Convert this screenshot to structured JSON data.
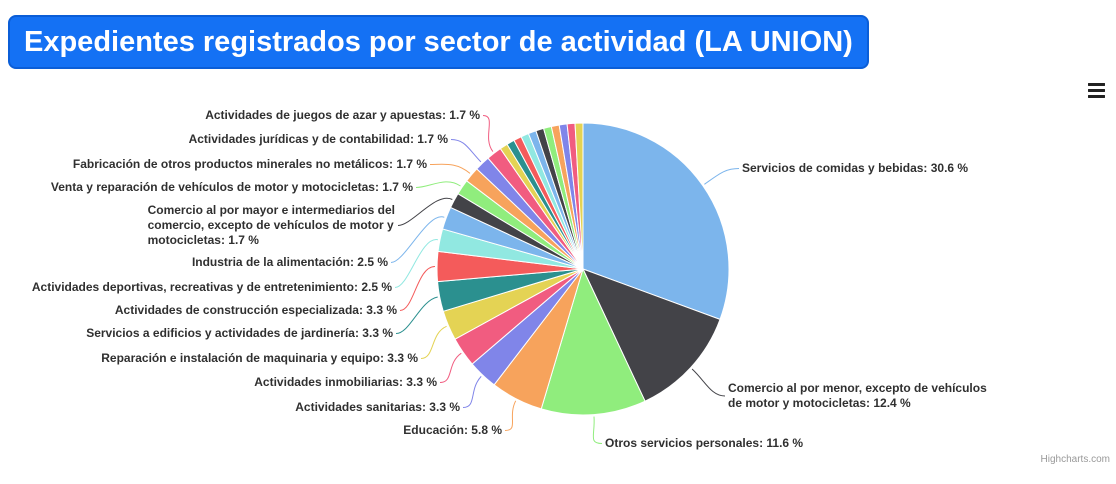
{
  "title": {
    "text": "Expedientes registrados por sector de actividad (LA UNION)",
    "background_color": "#1471f4",
    "text_color": "#ffffff"
  },
  "export_menu": {
    "icon": "hamburger-icon"
  },
  "credits": {
    "text": "Highcharts.com"
  },
  "labels": [
    {
      "slice": 0,
      "text": "Servicios de comidas y bebidas: 30.6 %"
    },
    {
      "slice": 1,
      "text": "Comercio al por menor, excepto de vehículos\nde motor y motocicletas: 12.4 %"
    },
    {
      "slice": 2,
      "text": "Otros servicios personales: 11.6 %"
    },
    {
      "slice": 15,
      "text": "Actividades de juegos de azar y apuestas: 1.7 %"
    },
    {
      "slice": 14,
      "text": "Actividades jurídicas y de contabilidad: 1.7 %"
    },
    {
      "slice": 13,
      "text": "Fabricación de otros productos minerales no metálicos: 1.7 %"
    },
    {
      "slice": 12,
      "text": "Venta y reparación de vehículos de motor y motocicletas: 1.7 %"
    },
    {
      "slice": 11,
      "text": "Comercio al por mayor e intermediarios del\ncomercio, excepto de vehículos de motor y\nmotocicletas: 1.7 %"
    },
    {
      "slice": 10,
      "text": "Industria de la alimentación: 2.5 %"
    },
    {
      "slice": 9,
      "text": "Actividades deportivas, recreativas y de entretenimiento: 2.5 %"
    },
    {
      "slice": 8,
      "text": "Actividades de construcción especializada: 3.3 %"
    },
    {
      "slice": 7,
      "text": "Servicios a edificios y actividades de jardinería: 3.3 %"
    },
    {
      "slice": 6,
      "text": "Reparación e instalación de maquinaria y equipo: 3.3 %"
    },
    {
      "slice": 5,
      "text": "Actividades inmobiliarias: 3.3 %"
    },
    {
      "slice": 4,
      "text": "Actividades sanitarias: 3.3 %"
    },
    {
      "slice": 3,
      "text": "Educación: 5.8 %"
    }
  ],
  "chart_data": {
    "type": "pie",
    "title": "Expedientes registrados por sector de actividad (LA UNION)",
    "value_unit": "%",
    "legend_position": "none",
    "grid": false,
    "start_angle_deg": 0,
    "direction": "clockwise",
    "center": [
      583,
      269
    ],
    "radius": 146,
    "palette": [
      "#7cb5ec",
      "#434348",
      "#90ed7d",
      "#f7a35c",
      "#8085e9",
      "#f15c80",
      "#e4d354",
      "#2b908f",
      "#f45b5b",
      "#91e8e1"
    ],
    "slices": [
      {
        "name": "Servicios de comidas y bebidas",
        "value": 30.6,
        "color": "#7cb5ec"
      },
      {
        "name": "Comercio al por menor, excepto de vehículos de motor y motocicletas",
        "value": 12.4,
        "color": "#434348"
      },
      {
        "name": "Otros servicios personales",
        "value": 11.6,
        "color": "#90ed7d"
      },
      {
        "name": "Educación",
        "value": 5.8,
        "color": "#f7a35c"
      },
      {
        "name": "Actividades sanitarias",
        "value": 3.3,
        "color": "#8085e9"
      },
      {
        "name": "Actividades inmobiliarias",
        "value": 3.3,
        "color": "#f15c80"
      },
      {
        "name": "Reparación e instalación de maquinaria y equipo",
        "value": 3.3,
        "color": "#e4d354"
      },
      {
        "name": "Servicios a edificios y actividades de jardinería",
        "value": 3.3,
        "color": "#2b908f"
      },
      {
        "name": "Actividades de construcción especializada",
        "value": 3.3,
        "color": "#f45b5b"
      },
      {
        "name": "Actividades deportivas, recreativas y de entretenimiento",
        "value": 2.5,
        "color": "#91e8e1"
      },
      {
        "name": "Industria de la alimentación",
        "value": 2.5,
        "color": "#7cb5ec"
      },
      {
        "name": "Comercio al por mayor e intermediarios del comercio, excepto de vehículos de motor y motocicletas",
        "value": 1.7,
        "color": "#434348"
      },
      {
        "name": "Venta y reparación de vehículos de motor y motocicletas",
        "value": 1.7,
        "color": "#90ed7d"
      },
      {
        "name": "Fabricación de otros productos minerales no metálicos",
        "value": 1.7,
        "color": "#f7a35c"
      },
      {
        "name": "Actividades jurídicas y de contabilidad",
        "value": 1.7,
        "color": "#8085e9"
      },
      {
        "name": "Actividades de juegos de azar y apuestas",
        "value": 1.7,
        "color": "#f15c80"
      },
      {
        "name": "",
        "value": 0.87,
        "color": "#e4d354"
      },
      {
        "name": "",
        "value": 0.87,
        "color": "#2b908f"
      },
      {
        "name": "",
        "value": 0.87,
        "color": "#f45b5b"
      },
      {
        "name": "",
        "value": 0.87,
        "color": "#91e8e1"
      },
      {
        "name": "",
        "value": 0.87,
        "color": "#7cb5ec"
      },
      {
        "name": "",
        "value": 0.87,
        "color": "#434348"
      },
      {
        "name": "",
        "value": 0.87,
        "color": "#90ed7d"
      },
      {
        "name": "",
        "value": 0.87,
        "color": "#f7a35c"
      },
      {
        "name": "",
        "value": 0.87,
        "color": "#8085e9"
      },
      {
        "name": "",
        "value": 0.87,
        "color": "#f15c80"
      },
      {
        "name": "",
        "value": 0.87,
        "color": "#e4d354"
      }
    ]
  }
}
